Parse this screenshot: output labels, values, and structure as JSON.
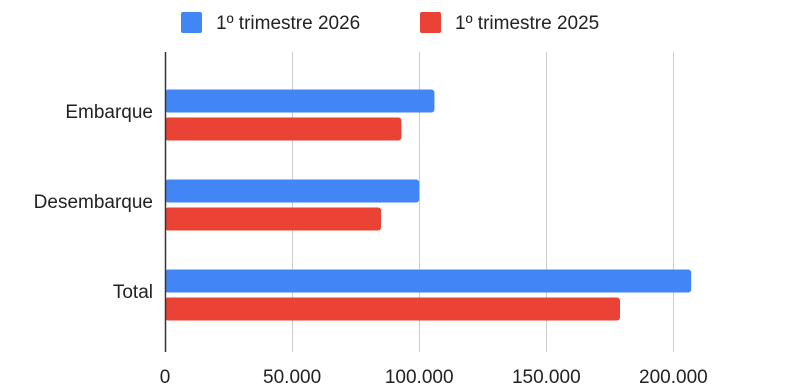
{
  "chart_data": {
    "type": "bar",
    "orientation": "horizontal",
    "categories": [
      "Embarque",
      "Desembarque",
      "Total"
    ],
    "series": [
      {
        "name": "1º trimestre 2026",
        "color": "#4285f4",
        "values": [
          106000,
          100000,
          207000
        ]
      },
      {
        "name": "1º trimestre 2025",
        "color": "#ea4335",
        "values": [
          93000,
          85000,
          179000
        ]
      }
    ],
    "xlim": [
      0,
      220000
    ],
    "xticks": [
      0,
      50000,
      100000,
      150000,
      200000
    ],
    "xtick_labels": [
      "0",
      "50.000",
      "100.000",
      "150.000",
      "200.000"
    ],
    "grid": true,
    "legend_position": "top"
  }
}
